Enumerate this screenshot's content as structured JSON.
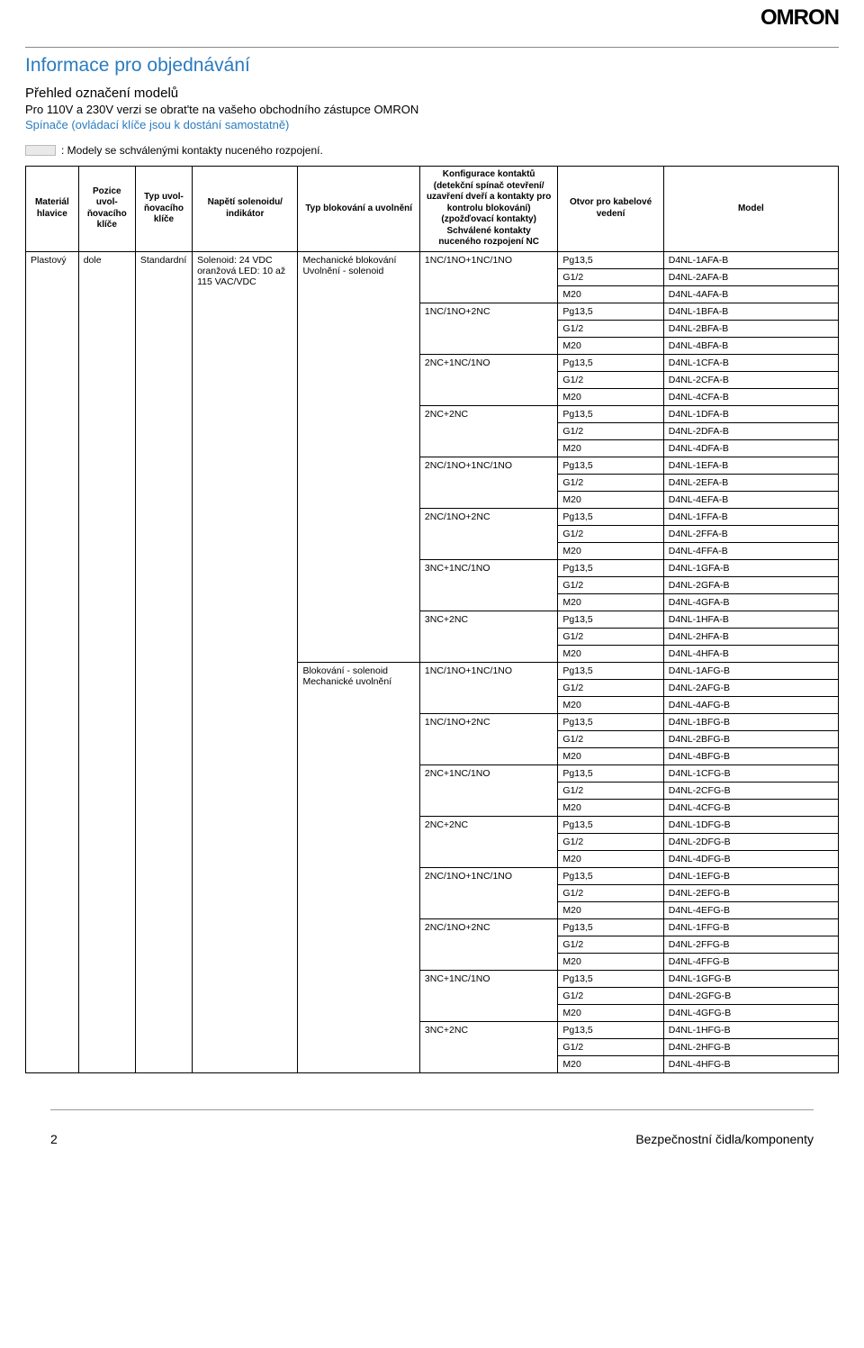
{
  "brand": "OMRON",
  "section_title": "Informace pro objednávání",
  "subtitle": "Přehled označení modelů",
  "line2": "Pro 110V a 230V verzi se obrat'te na vašeho obchodního zástupce OMRON",
  "line3": "Spínače (ovládací klíče jsou k dostání samostatně)",
  "legend_text": ": Modely se schválenými kontakty nuceného rozpojení.",
  "headers": {
    "c1": "Materiál hlavice",
    "c2": "Pozice uvol-ňovacího klíče",
    "c3": "Typ uvol-ňovacího klíče",
    "c4": "Napětí solenoidu/ indikátor",
    "c5": "Typ blokování a uvolnění",
    "c6": "Konfigurace kontaktů (detekční spínač otevření/ uzavření dveří a kontakty pro kontrolu blokování) (zpožďovací kontakty) Schválené kontakty nuceného rozpojení NC",
    "c7": "Otvor pro kabelové vedení",
    "c8": "Model"
  },
  "body_vals": {
    "material": "Plastový",
    "pozice": "dole",
    "typ": "Standardní",
    "napeti": "Solenoid: 24 VDC oranžová LED: 10 až 115 VAC/VDC",
    "blok1": "Mechanické blokování Uvolnění - solenoid",
    "blok2": "Blokování - solenoid Mechanické uvolnění"
  },
  "groups1": [
    {
      "cfg": "1NC/1NO+1NC/1NO",
      "rows": [
        [
          "Pg13,5",
          "D4NL-1AFA-B"
        ],
        [
          "G1/2",
          "D4NL-2AFA-B"
        ],
        [
          "M20",
          "D4NL-4AFA-B"
        ]
      ]
    },
    {
      "cfg": "1NC/1NO+2NC",
      "rows": [
        [
          "Pg13,5",
          "D4NL-1BFA-B"
        ],
        [
          "G1/2",
          "D4NL-2BFA-B"
        ],
        [
          "M20",
          "D4NL-4BFA-B"
        ]
      ]
    },
    {
      "cfg": "2NC+1NC/1NO",
      "rows": [
        [
          "Pg13,5",
          "D4NL-1CFA-B"
        ],
        [
          "G1/2",
          "D4NL-2CFA-B"
        ],
        [
          "M20",
          "D4NL-4CFA-B"
        ]
      ]
    },
    {
      "cfg": "2NC+2NC",
      "rows": [
        [
          "Pg13,5",
          "D4NL-1DFA-B"
        ],
        [
          "G1/2",
          "D4NL-2DFA-B"
        ],
        [
          "M20",
          "D4NL-4DFA-B"
        ]
      ]
    },
    {
      "cfg": "2NC/1NO+1NC/1NO",
      "rows": [
        [
          "Pg13,5",
          "D4NL-1EFA-B"
        ],
        [
          "G1/2",
          "D4NL-2EFA-B"
        ],
        [
          "M20",
          "D4NL-4EFA-B"
        ]
      ]
    },
    {
      "cfg": "2NC/1NO+2NC",
      "rows": [
        [
          "Pg13,5",
          "D4NL-1FFA-B"
        ],
        [
          "G1/2",
          "D4NL-2FFA-B"
        ],
        [
          "M20",
          "D4NL-4FFA-B"
        ]
      ]
    },
    {
      "cfg": "3NC+1NC/1NO",
      "rows": [
        [
          "Pg13,5",
          "D4NL-1GFA-B"
        ],
        [
          "G1/2",
          "D4NL-2GFA-B"
        ],
        [
          "M20",
          "D4NL-4GFA-B"
        ]
      ]
    },
    {
      "cfg": "3NC+2NC",
      "rows": [
        [
          "Pg13,5",
          "D4NL-1HFA-B"
        ],
        [
          "G1/2",
          "D4NL-2HFA-B"
        ],
        [
          "M20",
          "D4NL-4HFA-B"
        ]
      ]
    }
  ],
  "groups2": [
    {
      "cfg": "1NC/1NO+1NC/1NO",
      "rows": [
        [
          "Pg13,5",
          "D4NL-1AFG-B"
        ],
        [
          "G1/2",
          "D4NL-2AFG-B"
        ],
        [
          "M20",
          "D4NL-4AFG-B"
        ]
      ]
    },
    {
      "cfg": "1NC/1NO+2NC",
      "rows": [
        [
          "Pg13,5",
          "D4NL-1BFG-B"
        ],
        [
          "G1/2",
          "D4NL-2BFG-B"
        ],
        [
          "M20",
          "D4NL-4BFG-B"
        ]
      ]
    },
    {
      "cfg": "2NC+1NC/1NO",
      "rows": [
        [
          "Pg13,5",
          "D4NL-1CFG-B"
        ],
        [
          "G1/2",
          "D4NL-2CFG-B"
        ],
        [
          "M20",
          "D4NL-4CFG-B"
        ]
      ]
    },
    {
      "cfg": "2NC+2NC",
      "rows": [
        [
          "Pg13,5",
          "D4NL-1DFG-B"
        ],
        [
          "G1/2",
          "D4NL-2DFG-B"
        ],
        [
          "M20",
          "D4NL-4DFG-B"
        ]
      ]
    },
    {
      "cfg": "2NC/1NO+1NC/1NO",
      "rows": [
        [
          "Pg13,5",
          "D4NL-1EFG-B"
        ],
        [
          "G1/2",
          "D4NL-2EFG-B"
        ],
        [
          "M20",
          "D4NL-4EFG-B"
        ]
      ]
    },
    {
      "cfg": "2NC/1NO+2NC",
      "rows": [
        [
          "Pg13,5",
          "D4NL-1FFG-B"
        ],
        [
          "G1/2",
          "D4NL-2FFG-B"
        ],
        [
          "M20",
          "D4NL-4FFG-B"
        ]
      ]
    },
    {
      "cfg": "3NC+1NC/1NO",
      "rows": [
        [
          "Pg13,5",
          "D4NL-1GFG-B"
        ],
        [
          "G1/2",
          "D4NL-2GFG-B"
        ],
        [
          "M20",
          "D4NL-4GFG-B"
        ]
      ]
    },
    {
      "cfg": "3NC+2NC",
      "rows": [
        [
          "Pg13,5",
          "D4NL-1HFG-B"
        ],
        [
          "G1/2",
          "D4NL-2HFG-B"
        ],
        [
          "M20",
          "D4NL-4HFG-B"
        ]
      ]
    }
  ],
  "footer": {
    "page": "2",
    "right": "Bezpečnostní čidla/komponenty"
  }
}
